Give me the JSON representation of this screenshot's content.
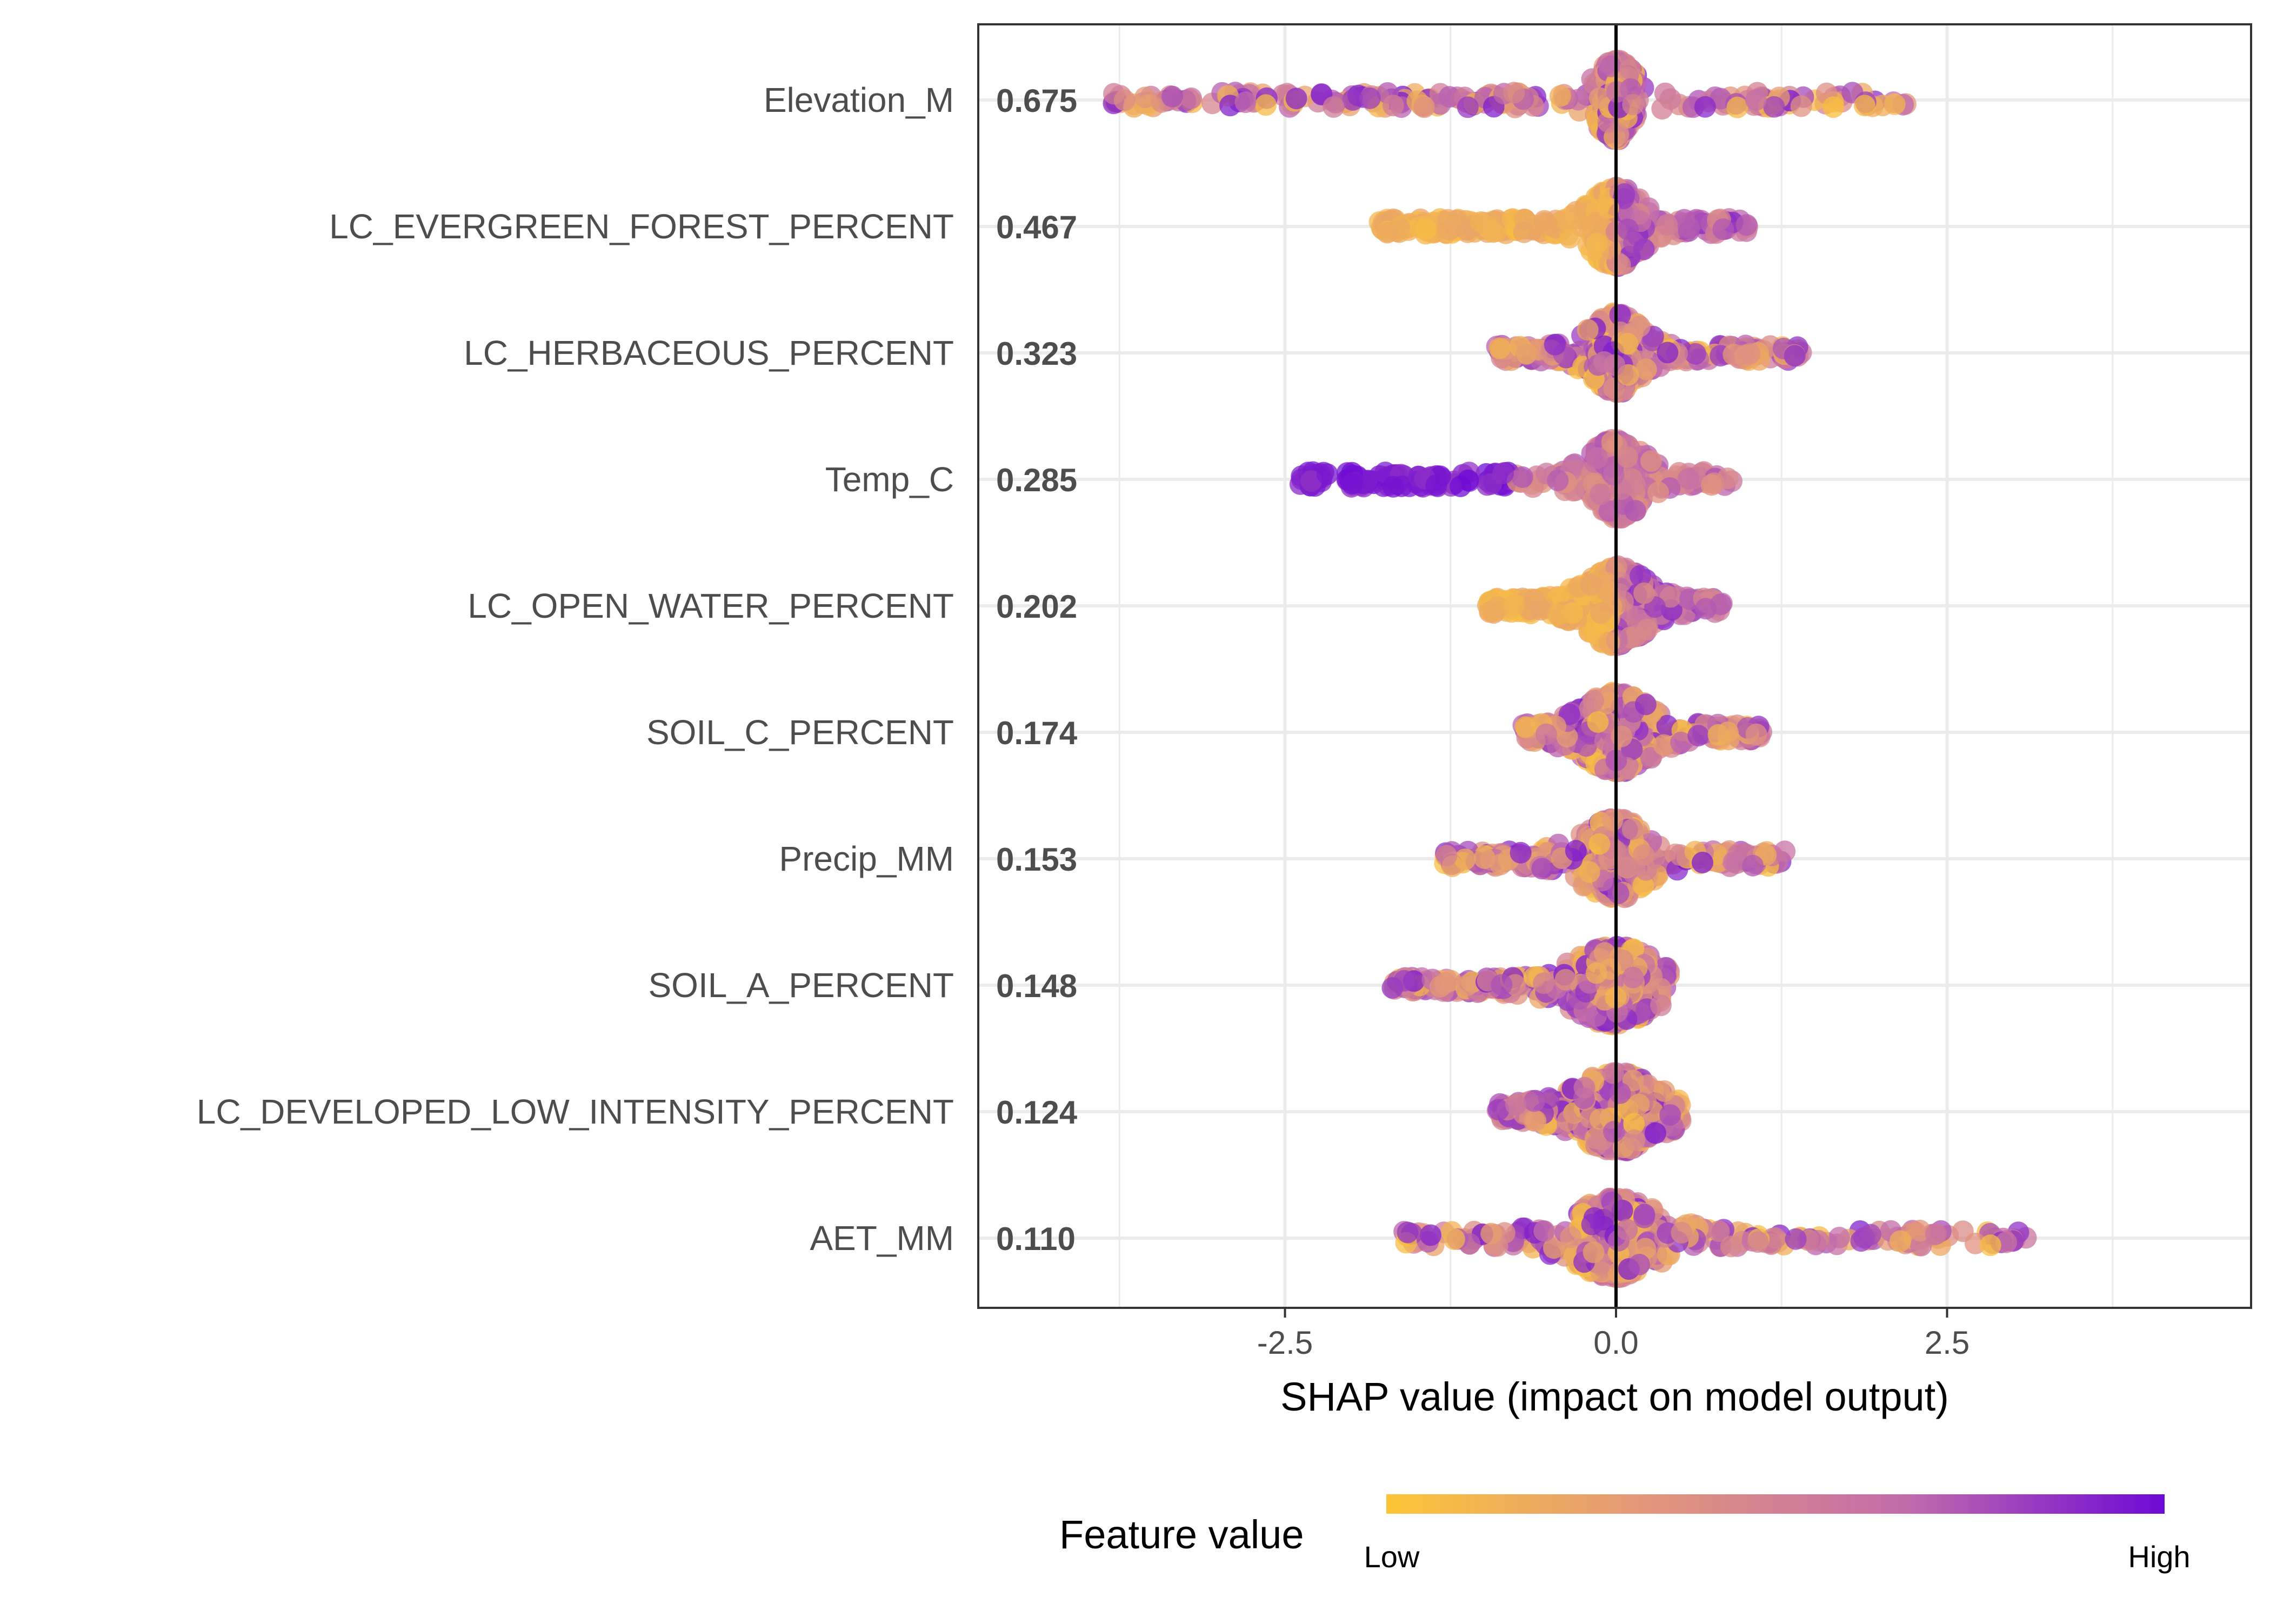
{
  "chart_data": {
    "type": "scatter",
    "subtype": "shap-beeswarm",
    "xlabel": "SHAP value (impact on model output)",
    "xlim": [
      -4.2,
      4.2
    ],
    "x_ticks": [
      -2.5,
      0.0,
      2.5
    ],
    "x_tick_labels": [
      "-2.5",
      "0.0",
      "2.5"
    ],
    "grid": true,
    "zero_line": true,
    "features": [
      {
        "name": "Elevation_M",
        "mean_abs_shap": "0.675",
        "min": -3.9,
        "max": 2.2,
        "spread": 0.14
      },
      {
        "name": "LC_EVERGREEN_FOREST_PERCENT",
        "mean_abs_shap": "0.467",
        "min": -1.8,
        "max": 1.0,
        "spread": 0.18
      },
      {
        "name": "LC_HERBACEOUS_PERCENT",
        "mean_abs_shap": "0.323",
        "min": -0.9,
        "max": 1.4,
        "spread": 0.18
      },
      {
        "name": "Temp_C",
        "mean_abs_shap": "0.285",
        "min": -2.4,
        "max": 0.9,
        "spread": 0.2
      },
      {
        "name": "LC_OPEN_WATER_PERCENT",
        "mean_abs_shap": "0.202",
        "min": -1.0,
        "max": 0.8,
        "spread": 0.22
      },
      {
        "name": "SOIL_C_PERCENT",
        "mean_abs_shap": "0.174",
        "min": -0.7,
        "max": 1.1,
        "spread": 0.25
      },
      {
        "name": "Precip_MM",
        "mean_abs_shap": "0.153",
        "min": -1.3,
        "max": 1.3,
        "spread": 0.25
      },
      {
        "name": "SOIL_A_PERCENT",
        "mean_abs_shap": "0.148",
        "min": -1.7,
        "max": 0.4,
        "spread": 0.3
      },
      {
        "name": "LC_DEVELOPED_LOW_INTENSITY_PERCENT",
        "mean_abs_shap": "0.124",
        "min": -0.9,
        "max": 0.5,
        "spread": 0.3
      },
      {
        "name": "AET_MM",
        "mean_abs_shap": "0.110",
        "min": -1.6,
        "max": 3.1,
        "spread": 0.32
      }
    ],
    "legend": {
      "title": "Feature value",
      "low_label": "Low",
      "high_label": "High",
      "colors": [
        "#fcc537",
        "#e3967a",
        "#c26bab",
        "#6d0ad6"
      ],
      "placement": "bottom"
    }
  }
}
